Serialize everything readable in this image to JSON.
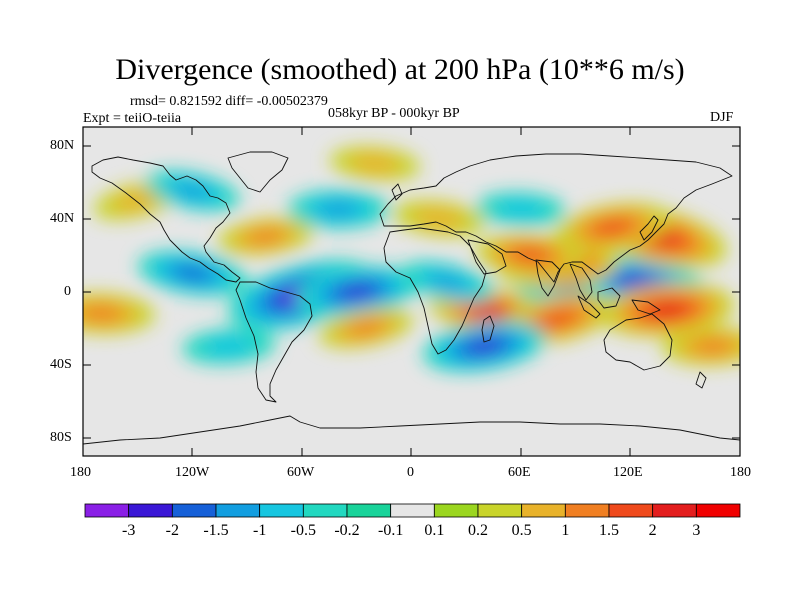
{
  "title": "Divergence (smoothed) at 200 hPa (10**6 m/s)",
  "stats": "rmsd= 0.821592 diff= -0.00502379",
  "experiment": "Expt = teiiO-teiia",
  "period": "058kyr BP - 000kyr BP",
  "season": "DJF",
  "map": {
    "projection": "cylindrical-equidistant",
    "lon_range": [
      -180,
      180
    ],
    "lat_range": [
      -90,
      90
    ],
    "lat_ticks": [
      "80N",
      "40N",
      "0",
      "40S",
      "80S"
    ],
    "lon_ticks": [
      "180",
      "120W",
      "60W",
      "0",
      "60E",
      "120E",
      "180"
    ]
  },
  "colorbar": {
    "labels": [
      "-3",
      "-2",
      "-1.5",
      "-1",
      "-0.5",
      "-0.2",
      "-0.1",
      "0.1",
      "0.2",
      "0.5",
      "1",
      "1.5",
      "2",
      "3"
    ],
    "colors": [
      "#8a1fe6",
      "#3a17d6",
      "#1660d8",
      "#129ee0",
      "#17c6e0",
      "#22d8c0",
      "#19d39a",
      "#e6e6e6",
      "#9bd61f",
      "#c9d42a",
      "#e8b22a",
      "#f07f22",
      "#ef4a1c",
      "#e31e1e",
      "#f00000"
    ]
  },
  "chart_data": {
    "type": "heatmap",
    "variable": "Divergence (smoothed) at 200 hPa",
    "units": "10**6 m/s",
    "difference": "058kyr BP - 000kyr BP",
    "season": "DJF",
    "xlim": [
      -180,
      180
    ],
    "ylim": [
      -90,
      90
    ],
    "levels": [
      -3,
      -2,
      -1.5,
      -1,
      -0.5,
      -0.2,
      -0.1,
      0.1,
      0.2,
      0.5,
      1,
      1.5,
      2,
      3
    ],
    "features": [
      {
        "lon": -60,
        "lat": -2,
        "value": -3.2
      },
      {
        "lon": -30,
        "lat": 0,
        "value": -2.0
      },
      {
        "lon": 95,
        "lat": 5,
        "value": -2.5
      },
      {
        "lon": 125,
        "lat": 5,
        "value": -2.2
      },
      {
        "lon": 135,
        "lat": 30,
        "value": 2.6
      },
      {
        "lon": 110,
        "lat": 35,
        "value": 1.8
      },
      {
        "lon": 80,
        "lat": 15,
        "value": 2.0
      },
      {
        "lon": 65,
        "lat": 20,
        "value": 1.5
      },
      {
        "lon": 45,
        "lat": -12,
        "value": 2.2
      },
      {
        "lon": 80,
        "lat": -15,
        "value": 1.8
      },
      {
        "lon": 140,
        "lat": -10,
        "value": 2.4
      },
      {
        "lon": -170,
        "lat": -12,
        "value": 1.4
      },
      {
        "lon": -120,
        "lat": 10,
        "value": -1.5
      },
      {
        "lon": -150,
        "lat": 50,
        "value": 0.8
      },
      {
        "lon": -80,
        "lat": 30,
        "value": 1.0
      },
      {
        "lon": -40,
        "lat": 45,
        "value": -1.2
      },
      {
        "lon": 15,
        "lat": 40,
        "value": 0.9
      },
      {
        "lon": 20,
        "lat": 5,
        "value": -1.0
      },
      {
        "lon": 40,
        "lat": -30,
        "value": -2.0
      },
      {
        "lon": 165,
        "lat": -30,
        "value": 1.2
      },
      {
        "lon": -20,
        "lat": 70,
        "value": 0.8
      },
      {
        "lon": -120,
        "lat": 55,
        "value": -1.0
      },
      {
        "lon": -25,
        "lat": -20,
        "value": 1.0
      },
      {
        "lon": -100,
        "lat": -30,
        "value": -0.9
      },
      {
        "lon": 60,
        "lat": 45,
        "value": -0.8
      }
    ]
  }
}
